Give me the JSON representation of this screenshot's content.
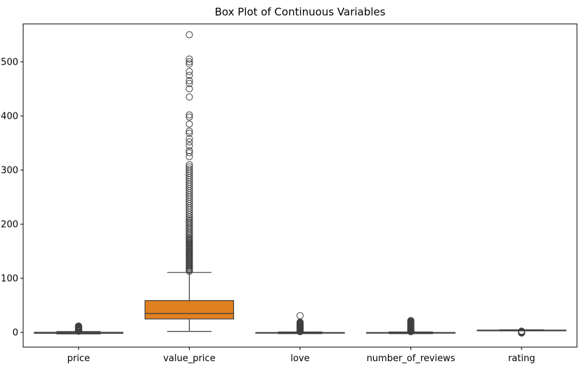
{
  "chart_data": {
    "type": "box",
    "title": "Box Plot of Continuous Variables",
    "xlabel": "",
    "ylabel": "",
    "ylim": [
      -27,
      570
    ],
    "yticks": [
      0,
      100,
      200,
      300,
      400,
      500
    ],
    "grid": false,
    "colors": {
      "price": "#3b75af",
      "value_price": "#e08020",
      "love": "#3a923a",
      "number_of_reviews": "#c03d3e",
      "rating": "#8c6bb1",
      "lines": "#3f3f3f"
    },
    "categories": [
      "price",
      "value_price",
      "love",
      "number_of_reviews",
      "rating"
    ],
    "boxes": [
      {
        "name": "price",
        "whisker_low": -2.5,
        "q1": -1.5,
        "median": -0.8,
        "q3": 0.3,
        "whisker_high": 1.8,
        "outliers": [
          2.2,
          2.8,
          3.4,
          4.0,
          4.7,
          5.3,
          6.0,
          6.8,
          7.5,
          8.3,
          9.0,
          9.8,
          10.5,
          11.2,
          12.0
        ]
      },
      {
        "name": "value_price",
        "whisker_low": 2,
        "q1": 25,
        "median": 35,
        "q3": 59,
        "whisker_high": 111,
        "outliers": [
          113,
          115,
          117,
          119,
          121,
          123,
          125,
          127,
          129,
          131,
          133,
          135,
          137,
          139,
          141,
          143,
          145,
          147,
          149,
          151,
          153,
          155,
          157,
          159,
          161,
          163,
          165,
          167,
          169,
          171,
          173,
          175,
          178,
          181,
          184,
          187,
          190,
          193,
          196,
          199,
          202,
          205,
          208,
          211,
          214,
          218,
          222,
          226,
          230,
          234,
          238,
          242,
          246,
          250,
          254,
          258,
          262,
          266,
          270,
          274,
          278,
          282,
          286,
          290,
          294,
          298,
          302,
          306,
          310,
          325,
          332,
          336,
          345,
          352,
          358,
          368,
          372,
          385,
          398,
          402,
          435,
          450,
          460,
          465,
          475,
          482,
          496,
          500,
          505,
          550
        ]
      },
      {
        "name": "love",
        "whisker_low": -2.0,
        "q1": -1.2,
        "median": -0.6,
        "q3": 0.0,
        "whisker_high": 1.0,
        "outliers": [
          1.5,
          2.0,
          2.6,
          3.2,
          3.8,
          4.4,
          5.0,
          5.6,
          6.2,
          6.8,
          7.4,
          8.0,
          8.6,
          9.2,
          9.8,
          10.5,
          11.2,
          12.0,
          12.8,
          13.6,
          14.4,
          15.2,
          16.0,
          17.0,
          18.0,
          19.0,
          31.0
        ]
      },
      {
        "name": "number_of_reviews",
        "whisker_low": -2.0,
        "q1": -1.2,
        "median": -0.6,
        "q3": 0.0,
        "whisker_high": 1.0,
        "outliers": [
          1.5,
          2.0,
          2.6,
          3.2,
          3.8,
          4.4,
          5.0,
          5.6,
          6.2,
          6.8,
          7.4,
          8.0,
          8.6,
          9.2,
          9.8,
          10.5,
          11.2,
          12.0,
          12.8,
          13.6,
          14.4,
          15.2,
          16.0,
          17.0,
          18.0,
          19.0,
          20.0,
          21.0,
          22.0
        ]
      },
      {
        "name": "rating",
        "whisker_low": 3.0,
        "q1": 3.6,
        "median": 4.0,
        "q3": 4.4,
        "whisker_high": 5.0,
        "outliers": [
          -1.0,
          -0.5,
          0.0,
          0.5,
          1.0,
          1.5,
          2.0,
          2.5
        ]
      }
    ]
  }
}
